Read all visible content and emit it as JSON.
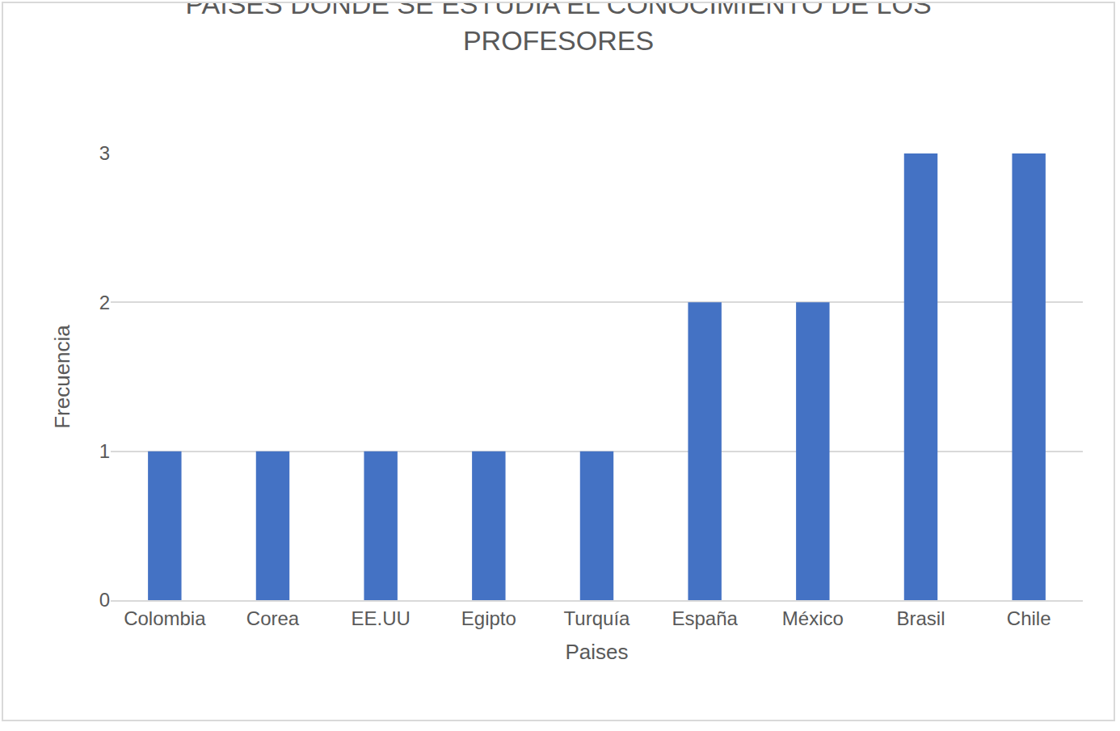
{
  "chart_data": {
    "type": "bar",
    "title": "PAISES DONDE SE ESTUDIA EL CONOCIMIENTO DE LOS PROFESORES",
    "x_label": "Paises",
    "y_label": "Frecuencia",
    "categories": [
      "Colombia",
      "Corea",
      "EE.UU",
      "Egipto",
      "Turquía",
      "España",
      "México",
      "Brasil",
      "Chile"
    ],
    "values": [
      1,
      1,
      1,
      1,
      1,
      2,
      2,
      3,
      3
    ],
    "color": "#4472c4",
    "ylim": [
      0,
      3
    ],
    "yticks": [
      0,
      1,
      2,
      3
    ],
    "grid": true
  }
}
